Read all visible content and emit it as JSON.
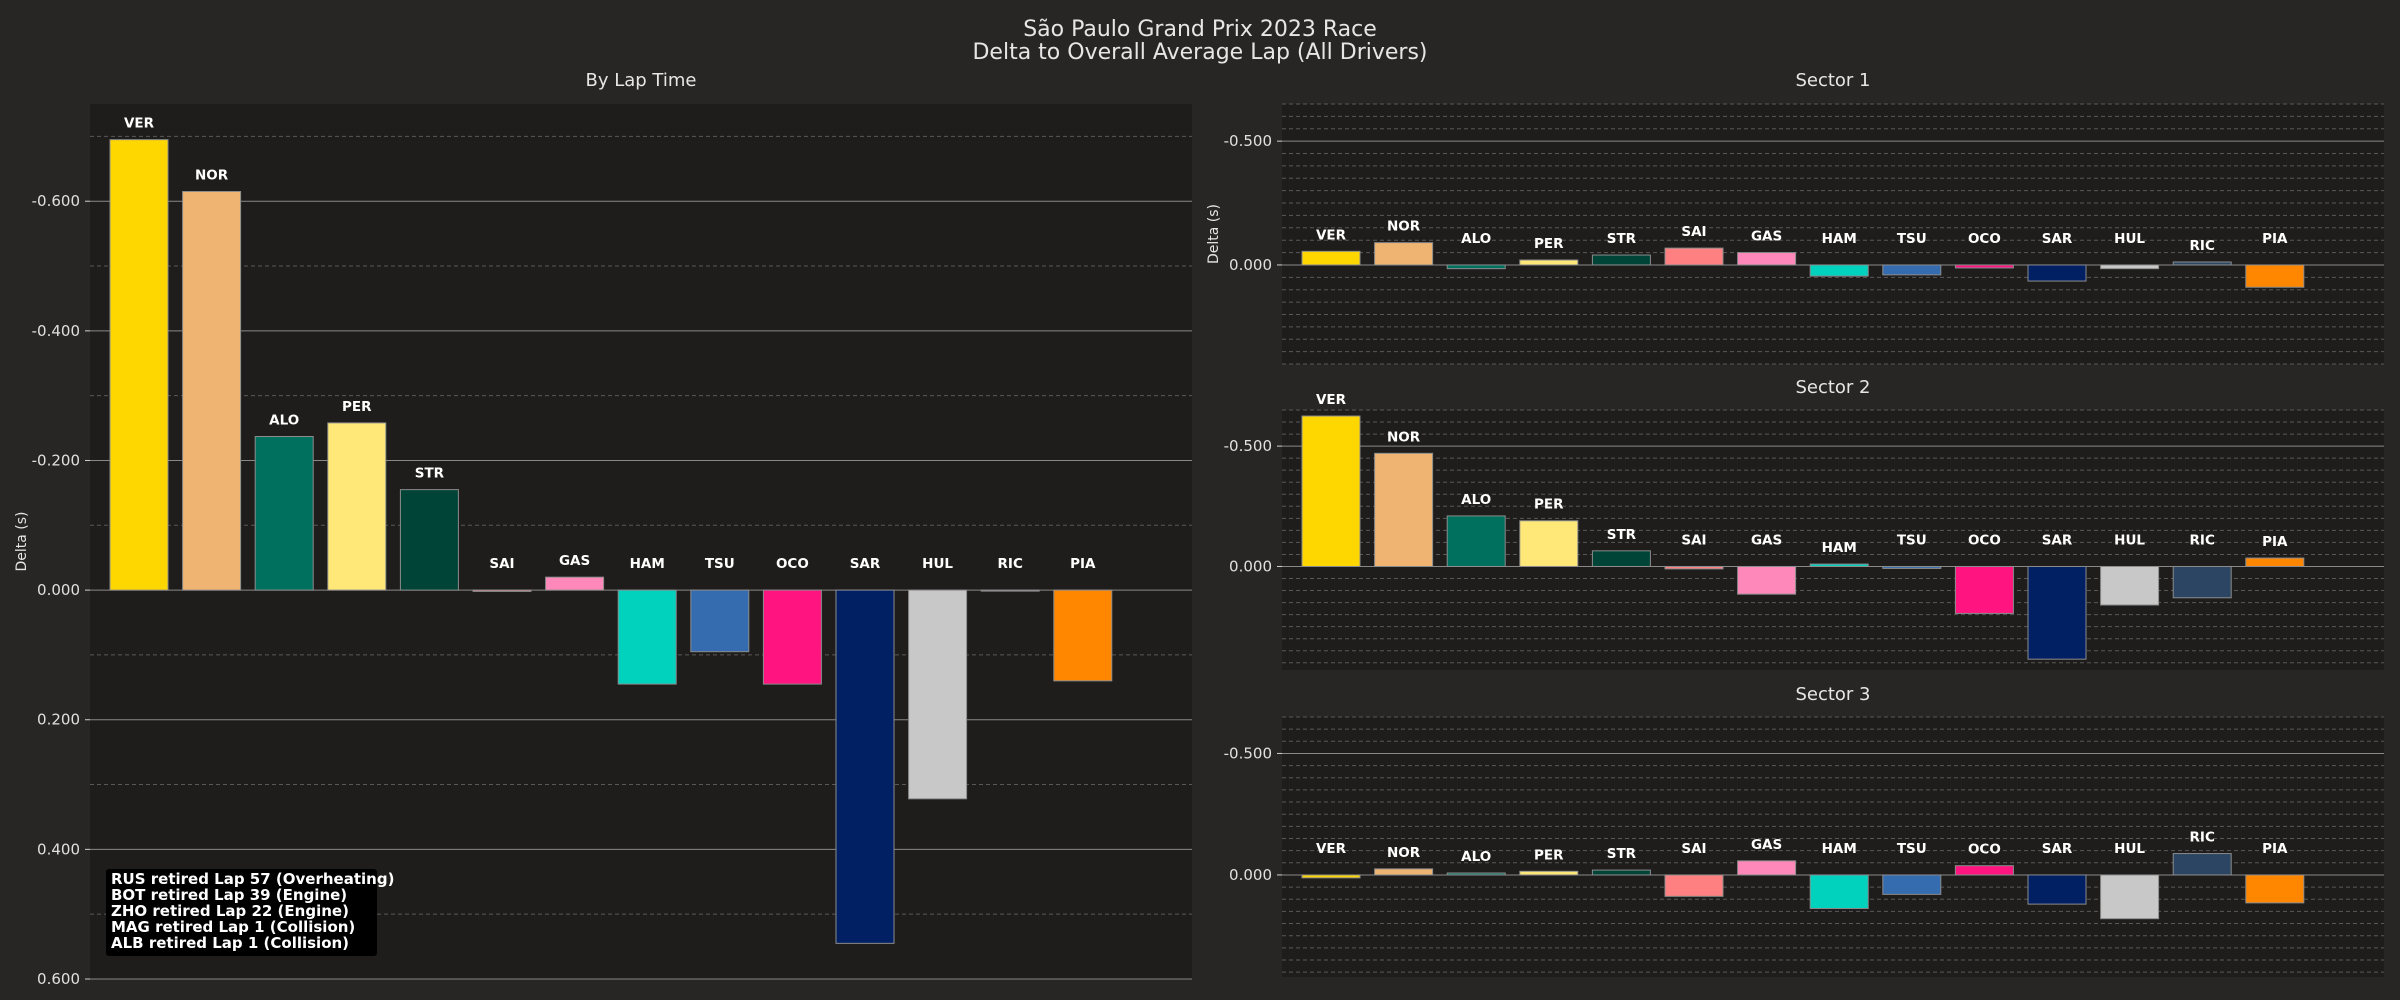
{
  "figure": {
    "title_line1": "São Paulo Grand Prix 2023 Race",
    "title_line2": "Delta to Overall Average Lap (All Drivers)"
  },
  "colors": {
    "figure_bg": "#282625",
    "axes_bg": "#1e1d1c",
    "VER": "#ffd700",
    "NOR": "#f0b472",
    "ALO": "#00705e",
    "PER": "#ffe878",
    "STR": "#004438",
    "SAI": "#ff8080",
    "GAS": "#ff88bb",
    "HAM": "#00d2be",
    "TSU": "#356cb0",
    "OCO": "#ff1480",
    "SAR": "#012064",
    "HUL": "#c8c8c8",
    "RIC": "#2b4562",
    "PIA": "#ff8700"
  },
  "notes": {
    "retirements": [
      "RUS retired Lap 57 (Overheating)",
      "BOT retired Lap 39 (Engine)",
      "ZHO retired Lap 22 (Engine)",
      "MAG retired Lap 1 (Collision)",
      "ALB retired Lap 1 (Collision)"
    ]
  },
  "chart_data": [
    {
      "type": "bar",
      "title": "By Lap Time",
      "ylabel": "Delta (s)",
      "y_inverted": true,
      "ylim": [
        0.6,
        -0.75
      ],
      "yticks": [
        -0.6,
        -0.4,
        -0.2,
        0.0,
        0.2,
        0.4,
        0.6
      ],
      "ytick_labels": [
        "-0.600",
        "-0.400",
        "-0.200",
        "0.000",
        "0.200",
        "0.400",
        "0.600"
      ],
      "grid": true,
      "categories": [
        "VER",
        "NOR",
        "ALO",
        "PER",
        "STR",
        "SAI",
        "GAS",
        "HAM",
        "TSU",
        "OCO",
        "SAR",
        "HUL",
        "RIC",
        "PIA"
      ],
      "values": [
        -0.695,
        -0.615,
        -0.237,
        -0.258,
        -0.155,
        0.002,
        -0.02,
        0.145,
        0.095,
        0.145,
        0.545,
        0.322,
        0.001,
        0.14
      ]
    },
    {
      "type": "bar",
      "title": "Sector 1",
      "ylabel": "Delta (s)",
      "y_inverted": true,
      "ylim": [
        0.4,
        -0.65
      ],
      "yticks": [
        -0.5,
        0.0
      ],
      "ytick_labels": [
        "-0.500",
        "0.000"
      ],
      "grid": true,
      "categories": [
        "VER",
        "NOR",
        "ALO",
        "PER",
        "STR",
        "SAI",
        "GAS",
        "HAM",
        "TSU",
        "OCO",
        "SAR",
        "HUL",
        "RIC",
        "PIA"
      ],
      "values": [
        -0.055,
        -0.09,
        0.015,
        -0.02,
        -0.04,
        -0.068,
        -0.05,
        0.045,
        0.04,
        0.012,
        0.065,
        0.015,
        -0.012,
        0.09
      ]
    },
    {
      "type": "bar",
      "title": "Sector 2",
      "ylabel": "",
      "y_inverted": true,
      "ylim": [
        0.43,
        -0.65
      ],
      "yticks": [
        -0.5,
        0.0
      ],
      "ytick_labels": [
        "-0.500",
        "0.000"
      ],
      "grid": true,
      "categories": [
        "VER",
        "NOR",
        "ALO",
        "PER",
        "STR",
        "SAI",
        "GAS",
        "HAM",
        "TSU",
        "OCO",
        "SAR",
        "HUL",
        "RIC",
        "PIA"
      ],
      "values": [
        -0.625,
        -0.47,
        -0.21,
        -0.19,
        -0.065,
        0.01,
        0.115,
        -0.01,
        0.008,
        0.195,
        0.385,
        0.16,
        0.13,
        -0.035
      ]
    },
    {
      "type": "bar",
      "title": "Sector 3",
      "ylabel": "",
      "y_inverted": true,
      "ylim": [
        0.42,
        -0.65
      ],
      "yticks": [
        -0.5,
        0.0
      ],
      "ytick_labels": [
        "-0.500",
        "0.000"
      ],
      "grid": true,
      "categories": [
        "VER",
        "NOR",
        "ALO",
        "PER",
        "STR",
        "SAI",
        "GAS",
        "HAM",
        "TSU",
        "OCO",
        "SAR",
        "HUL",
        "RIC",
        "PIA"
      ],
      "values": [
        0.012,
        -0.025,
        -0.008,
        -0.015,
        -0.02,
        0.088,
        -0.058,
        0.138,
        0.08,
        -0.038,
        0.12,
        0.18,
        -0.088,
        0.115
      ]
    }
  ]
}
